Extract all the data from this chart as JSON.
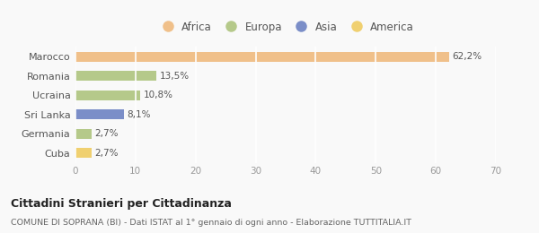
{
  "categories": [
    "Marocco",
    "Romania",
    "Ucraina",
    "Sri Lanka",
    "Germania",
    "Cuba"
  ],
  "values": [
    62.2,
    13.5,
    10.8,
    8.1,
    2.7,
    2.7
  ],
  "labels": [
    "62,2%",
    "13,5%",
    "10,8%",
    "8,1%",
    "2,7%",
    "2,7%"
  ],
  "colors": [
    "#F0C08A",
    "#B5C98A",
    "#B5C98A",
    "#7B8EC8",
    "#B5C98A",
    "#F0D070"
  ],
  "legend_items": [
    {
      "label": "Africa",
      "color": "#F0C08A"
    },
    {
      "label": "Europa",
      "color": "#B5C98A"
    },
    {
      "label": "Asia",
      "color": "#7B8EC8"
    },
    {
      "label": "America",
      "color": "#F0D070"
    }
  ],
  "xlim": [
    0,
    70
  ],
  "xticks": [
    0,
    10,
    20,
    30,
    40,
    50,
    60,
    70
  ],
  "title": "Cittadini Stranieri per Cittadinanza",
  "subtitle": "COMUNE DI SOPRANA (BI) - Dati ISTAT al 1° gennaio di ogni anno - Elaborazione TUTTITALIA.IT",
  "background_color": "#f9f9f9",
  "grid_color": "#e8e8e8",
  "bar_height": 0.52
}
